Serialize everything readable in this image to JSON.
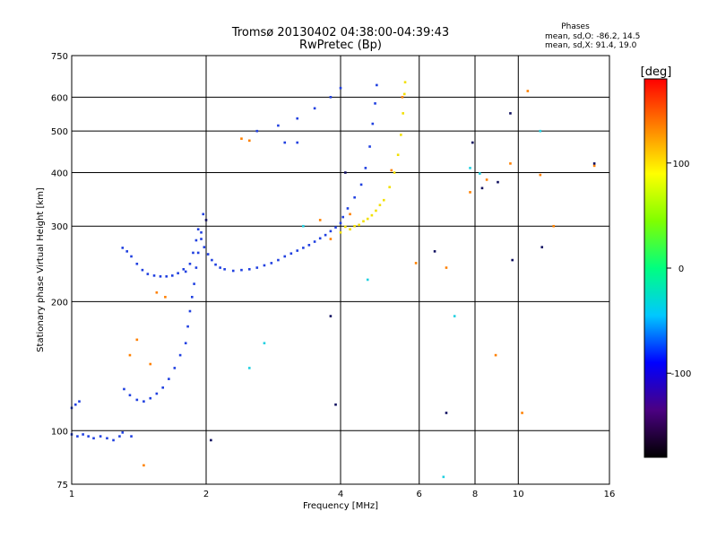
{
  "chart_data": {
    "type": "scatter",
    "title": "Tromsø 20130402 04:38:00-04:39:43",
    "subtitle": "RwPretec (Bp)",
    "xlabel": "Frequency [MHz]",
    "ylabel": "Stationary phase Virtual Height [km]",
    "x_scale": "log",
    "y_scale": "log",
    "xlim": [
      1,
      16
    ],
    "ylim": [
      75,
      750
    ],
    "x_ticks": [
      1,
      2,
      4,
      6,
      8,
      10,
      16
    ],
    "y_ticks": [
      75,
      100,
      200,
      300,
      400,
      500,
      600,
      750
    ],
    "grid": true,
    "phase_stats": {
      "heading": "Phases",
      "line_o": "mean, sd,O: -86.2, 14.5",
      "line_x": "mean, sd,X:  91.4, 19.0"
    },
    "colorbar": {
      "label": "[deg]",
      "ticks": [
        100,
        0,
        -100
      ],
      "range": [
        -180,
        180
      ],
      "colors": [
        "#000000",
        "#4b0082",
        "#0000ff",
        "#00c8ff",
        "#00ff80",
        "#80ff00",
        "#ffff00",
        "#ff8000",
        "#ff0000"
      ]
    },
    "series": [
      {
        "trace": "O",
        "color": "#2040e0",
        "points": [
          [
            1.0,
            98
          ],
          [
            1.03,
            97
          ],
          [
            1.06,
            98
          ],
          [
            1.09,
            97
          ],
          [
            1.12,
            96
          ],
          [
            1.16,
            97
          ],
          [
            1.2,
            96
          ],
          [
            1.24,
            95
          ],
          [
            1.28,
            97
          ],
          [
            1.3,
            99
          ],
          [
            1.36,
            97
          ],
          [
            1.0,
            113
          ],
          [
            1.02,
            115
          ],
          [
            1.04,
            117
          ],
          [
            1.3,
            267
          ],
          [
            1.33,
            262
          ],
          [
            1.36,
            255
          ],
          [
            1.4,
            245
          ],
          [
            1.44,
            237
          ],
          [
            1.48,
            232
          ],
          [
            1.53,
            230
          ],
          [
            1.58,
            229
          ],
          [
            1.63,
            229
          ],
          [
            1.68,
            230
          ],
          [
            1.73,
            233
          ],
          [
            1.78,
            238
          ],
          [
            1.8,
            235
          ],
          [
            1.84,
            245
          ],
          [
            1.87,
            260
          ],
          [
            1.9,
            278
          ],
          [
            1.92,
            295
          ],
          [
            1.95,
            280
          ],
          [
            1.98,
            268
          ],
          [
            2.02,
            258
          ],
          [
            2.06,
            250
          ],
          [
            2.1,
            244
          ],
          [
            2.15,
            240
          ],
          [
            2.2,
            238
          ],
          [
            2.3,
            236
          ],
          [
            2.4,
            237
          ],
          [
            2.5,
            238
          ],
          [
            2.6,
            240
          ],
          [
            2.7,
            243
          ],
          [
            2.8,
            246
          ],
          [
            2.9,
            250
          ],
          [
            3.0,
            255
          ],
          [
            3.1,
            259
          ],
          [
            3.2,
            263
          ],
          [
            3.3,
            267
          ],
          [
            3.4,
            271
          ],
          [
            3.5,
            276
          ],
          [
            3.6,
            281
          ],
          [
            3.7,
            286
          ],
          [
            3.8,
            292
          ],
          [
            3.9,
            298
          ],
          [
            4.0,
            305
          ],
          [
            4.05,
            315
          ],
          [
            4.15,
            330
          ],
          [
            4.3,
            350
          ],
          [
            4.45,
            375
          ],
          [
            4.55,
            410
          ],
          [
            4.65,
            460
          ],
          [
            4.72,
            520
          ],
          [
            4.78,
            580
          ],
          [
            4.82,
            640
          ],
          [
            1.8,
            160
          ],
          [
            1.82,
            175
          ],
          [
            1.84,
            190
          ],
          [
            1.86,
            205
          ],
          [
            1.88,
            220
          ],
          [
            1.9,
            240
          ],
          [
            1.92,
            260
          ],
          [
            1.95,
            290
          ],
          [
            1.97,
            320
          ],
          [
            1.75,
            150
          ],
          [
            1.7,
            140
          ],
          [
            1.65,
            132
          ],
          [
            1.6,
            126
          ],
          [
            1.55,
            122
          ],
          [
            1.5,
            119
          ],
          [
            1.45,
            117
          ],
          [
            1.4,
            118
          ],
          [
            1.35,
            121
          ],
          [
            1.31,
            125
          ],
          [
            2.6,
            500
          ],
          [
            2.9,
            515
          ],
          [
            3.2,
            535
          ],
          [
            3.5,
            565
          ],
          [
            3.8,
            600
          ],
          [
            4.0,
            630
          ],
          [
            3.0,
            470
          ],
          [
            3.2,
            470
          ]
        ]
      },
      {
        "trace": "X",
        "color": "#f2e000",
        "points": [
          [
            4.0,
            290
          ],
          [
            4.2,
            295
          ],
          [
            4.4,
            302
          ],
          [
            4.6,
            312
          ],
          [
            4.8,
            326
          ],
          [
            5.0,
            345
          ],
          [
            5.15,
            370
          ],
          [
            5.28,
            400
          ],
          [
            5.38,
            440
          ],
          [
            5.46,
            490
          ],
          [
            5.52,
            550
          ],
          [
            5.56,
            610
          ],
          [
            5.58,
            650
          ],
          [
            4.1,
            299
          ],
          [
            4.3,
            300
          ],
          [
            4.5,
            308
          ],
          [
            4.7,
            318
          ],
          [
            4.9,
            336
          ]
        ]
      },
      {
        "trace": "scatter",
        "color": "#ff8000",
        "points": [
          [
            1.5,
            143
          ],
          [
            1.4,
            163
          ],
          [
            1.35,
            150
          ],
          [
            1.55,
            210
          ],
          [
            1.62,
            205
          ],
          [
            1.45,
            83
          ],
          [
            3.8,
            280
          ],
          [
            3.6,
            310
          ],
          [
            4.2,
            320
          ],
          [
            2.4,
            480
          ],
          [
            2.5,
            475
          ],
          [
            5.2,
            405
          ],
          [
            5.5,
            600
          ],
          [
            7.8,
            360
          ],
          [
            8.5,
            385
          ],
          [
            9.6,
            420
          ],
          [
            11.2,
            395
          ],
          [
            12.0,
            300
          ],
          [
            10.5,
            620
          ],
          [
            5.9,
            246
          ],
          [
            6.9,
            240
          ],
          [
            8.9,
            150
          ],
          [
            10.2,
            110
          ],
          [
            14.8,
            415
          ]
        ]
      },
      {
        "trace": "noise",
        "color": "#101060",
        "points": [
          [
            2.0,
            310
          ],
          [
            3.8,
            185
          ],
          [
            3.9,
            115
          ],
          [
            4.1,
            400
          ],
          [
            2.05,
            95
          ],
          [
            6.5,
            262
          ],
          [
            6.9,
            110
          ],
          [
            7.9,
            470
          ],
          [
            8.3,
            368
          ],
          [
            9.0,
            380
          ],
          [
            9.6,
            550
          ],
          [
            9.7,
            250
          ],
          [
            11.3,
            268
          ],
          [
            14.8,
            420
          ]
        ]
      },
      {
        "trace": "cyan",
        "color": "#20d0e0",
        "points": [
          [
            2.5,
            140
          ],
          [
            2.7,
            160
          ],
          [
            3.3,
            300
          ],
          [
            4.6,
            225
          ],
          [
            6.8,
            78
          ],
          [
            7.2,
            185
          ],
          [
            7.8,
            410
          ],
          [
            8.2,
            398
          ],
          [
            11.2,
            500
          ]
        ]
      }
    ]
  }
}
